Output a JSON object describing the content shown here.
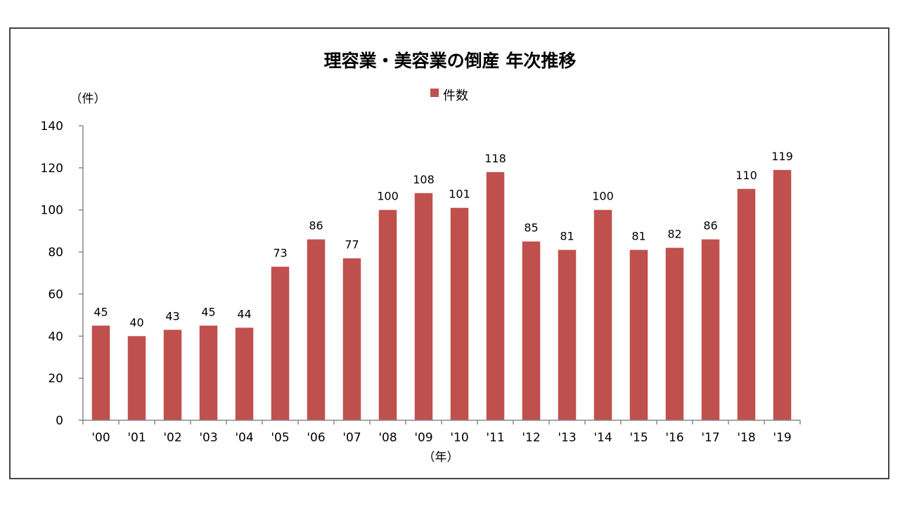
{
  "chart_data": {
    "type": "bar",
    "title": "理容業・美容業の倒産 年次推移",
    "ylabel": "（件）",
    "xlabel": "（年）",
    "legend": [
      {
        "name": "件数",
        "color": "#c0504d"
      }
    ],
    "legend_position": "top-center",
    "categories": [
      "'00",
      "'01",
      "'02",
      "'03",
      "'04",
      "'05",
      "'06",
      "'07",
      "'08",
      "'09",
      "'10",
      "'11",
      "'12",
      "'13",
      "'14",
      "'15",
      "'16",
      "'17",
      "'18",
      "'19"
    ],
    "series": [
      {
        "name": "件数",
        "color": "#c0504d",
        "values": [
          45,
          40,
          43,
          45,
          44,
          73,
          86,
          77,
          100,
          108,
          101,
          118,
          85,
          81,
          100,
          81,
          82,
          86,
          110,
          119
        ]
      }
    ],
    "ylim": [
      0,
      140
    ],
    "yticks": [
      0,
      20,
      40,
      60,
      80,
      100,
      120,
      140
    ],
    "grid": false
  }
}
